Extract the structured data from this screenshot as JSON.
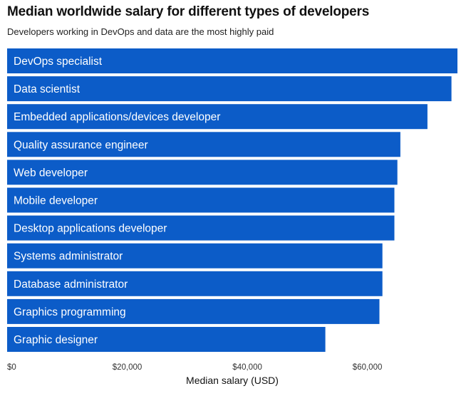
{
  "colors": {
    "bar": "#0c5cc8",
    "background": "#ffffff"
  },
  "chart_data": {
    "type": "bar",
    "orientation": "horizontal",
    "title": "Median worldwide salary for different types of developers",
    "subtitle": "Developers working in DevOps and data are the most highly paid",
    "xlabel": "Median salary (USD)",
    "ylabel": "",
    "xlim": [
      0,
      75000
    ],
    "xticks": [
      0,
      20000,
      40000,
      60000
    ],
    "xtick_labels": [
      "$0",
      "$20,000",
      "$40,000",
      "$60,000"
    ],
    "grid": false,
    "categories": [
      "DevOps specialist",
      "Data scientist",
      "Embedded applications/devices developer",
      "Quality assurance engineer",
      "Web developer",
      "Mobile developer",
      "Desktop applications developer",
      "Systems administrator",
      "Database administrator",
      "Graphics programming",
      "Graphic designer"
    ],
    "values": [
      75000,
      74000,
      70000,
      65500,
      65000,
      64500,
      64500,
      62500,
      62500,
      62000,
      53000
    ]
  }
}
